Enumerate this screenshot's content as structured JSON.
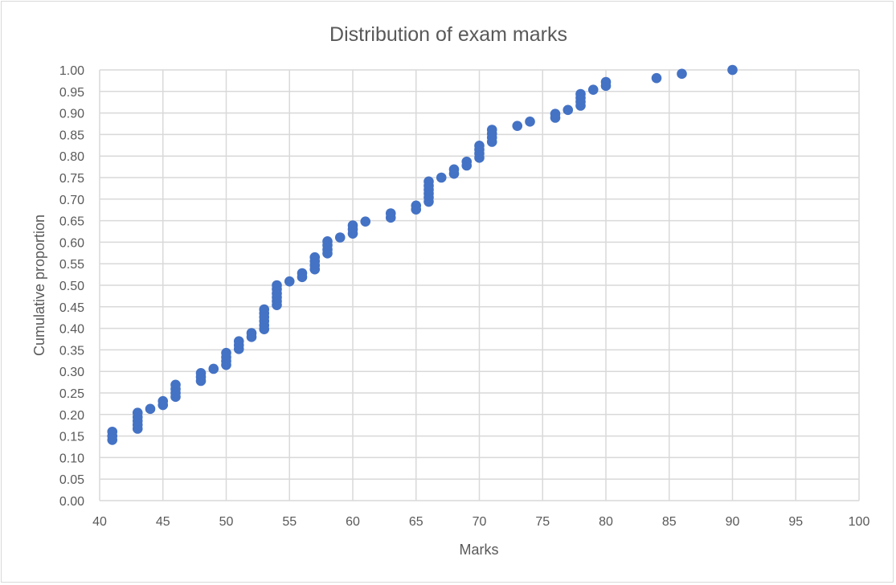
{
  "chart_data": {
    "type": "scatter",
    "title": "Distribution of exam marks",
    "xlabel": "Marks",
    "ylabel": "Cumulative proportion",
    "xlim": [
      40,
      100
    ],
    "ylim": [
      0,
      1
    ],
    "xticks": [
      "40",
      "45",
      "50",
      "55",
      "60",
      "65",
      "70",
      "75",
      "80",
      "85",
      "90",
      "95",
      "100"
    ],
    "yticks": [
      "0.00",
      "0.05",
      "0.10",
      "0.15",
      "0.20",
      "0.25",
      "0.30",
      "0.35",
      "0.40",
      "0.45",
      "0.50",
      "0.55",
      "0.60",
      "0.65",
      "0.70",
      "0.75",
      "0.80",
      "0.85",
      "0.90",
      "0.95",
      "1.00"
    ],
    "grid": true,
    "legend": "none",
    "marker_color": "#4472C4",
    "points": [
      [
        41,
        0.141
      ],
      [
        41,
        0.15
      ],
      [
        41,
        0.16
      ],
      [
        43,
        0.167
      ],
      [
        43,
        0.176
      ],
      [
        43,
        0.185
      ],
      [
        43,
        0.194
      ],
      [
        43,
        0.204
      ],
      [
        44,
        0.213
      ],
      [
        45,
        0.222
      ],
      [
        45,
        0.231
      ],
      [
        46,
        0.241
      ],
      [
        46,
        0.25
      ],
      [
        46,
        0.259
      ],
      [
        46,
        0.269
      ],
      [
        48,
        0.278
      ],
      [
        48,
        0.287
      ],
      [
        48,
        0.296
      ],
      [
        49,
        0.306
      ],
      [
        50,
        0.315
      ],
      [
        50,
        0.324
      ],
      [
        50,
        0.333
      ],
      [
        50,
        0.343
      ],
      [
        51,
        0.352
      ],
      [
        51,
        0.361
      ],
      [
        51,
        0.37
      ],
      [
        52,
        0.38
      ],
      [
        52,
        0.389
      ],
      [
        53,
        0.398
      ],
      [
        53,
        0.407
      ],
      [
        53,
        0.417
      ],
      [
        53,
        0.426
      ],
      [
        53,
        0.435
      ],
      [
        53,
        0.444
      ],
      [
        54,
        0.454
      ],
      [
        54,
        0.463
      ],
      [
        54,
        0.472
      ],
      [
        54,
        0.481
      ],
      [
        54,
        0.491
      ],
      [
        54,
        0.5
      ],
      [
        55,
        0.509
      ],
      [
        56,
        0.519
      ],
      [
        56,
        0.528
      ],
      [
        57,
        0.537
      ],
      [
        57,
        0.546
      ],
      [
        57,
        0.556
      ],
      [
        57,
        0.565
      ],
      [
        58,
        0.574
      ],
      [
        58,
        0.583
      ],
      [
        58,
        0.593
      ],
      [
        58,
        0.602
      ],
      [
        59,
        0.611
      ],
      [
        60,
        0.62
      ],
      [
        60,
        0.63
      ],
      [
        60,
        0.639
      ],
      [
        61,
        0.648
      ],
      [
        63,
        0.657
      ],
      [
        63,
        0.667
      ],
      [
        65,
        0.676
      ],
      [
        65,
        0.685
      ],
      [
        66,
        0.694
      ],
      [
        66,
        0.704
      ],
      [
        66,
        0.713
      ],
      [
        66,
        0.722
      ],
      [
        66,
        0.731
      ],
      [
        66,
        0.741
      ],
      [
        67,
        0.75
      ],
      [
        68,
        0.759
      ],
      [
        68,
        0.769
      ],
      [
        69,
        0.778
      ],
      [
        69,
        0.787
      ],
      [
        70,
        0.796
      ],
      [
        70,
        0.806
      ],
      [
        70,
        0.815
      ],
      [
        70,
        0.824
      ],
      [
        71,
        0.833
      ],
      [
        71,
        0.843
      ],
      [
        71,
        0.852
      ],
      [
        71,
        0.861
      ],
      [
        73,
        0.87
      ],
      [
        74,
        0.88
      ],
      [
        76,
        0.889
      ],
      [
        76,
        0.898
      ],
      [
        77,
        0.907
      ],
      [
        78,
        0.917
      ],
      [
        78,
        0.926
      ],
      [
        78,
        0.935
      ],
      [
        78,
        0.944
      ],
      [
        79,
        0.954
      ],
      [
        80,
        0.963
      ],
      [
        80,
        0.972
      ],
      [
        84,
        0.981
      ],
      [
        86,
        0.991
      ],
      [
        90,
        1.0
      ]
    ]
  }
}
